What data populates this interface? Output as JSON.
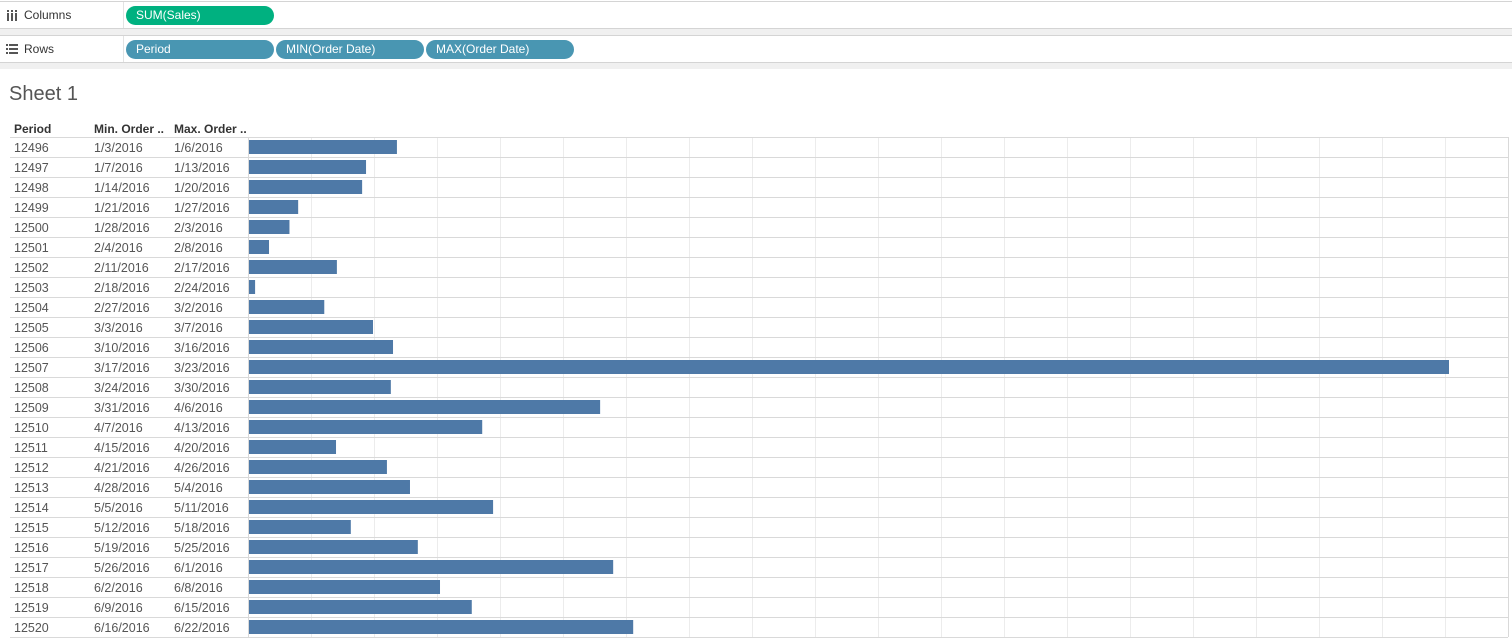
{
  "shelves": {
    "columns": {
      "label": "Columns",
      "pills": [
        {
          "text": "SUM(Sales)",
          "color": "#00b180"
        }
      ]
    },
    "rows": {
      "label": "Rows",
      "pills": [
        {
          "text": "Period",
          "color": "#4996b2"
        },
        {
          "text": "MIN(Order Date)",
          "color": "#4996b2"
        },
        {
          "text": "MAX(Order Date)",
          "color": "#4996b2"
        }
      ]
    }
  },
  "sheet_title": "Sheet 1",
  "headers": {
    "period": "Period",
    "min_date": "Min. Order ..",
    "max_date": "Max. Order .."
  },
  "colors": {
    "bar": "#4e79a7",
    "grid": "#ececec",
    "row_divider": "#d9d9d9"
  },
  "chart_data": {
    "type": "bar",
    "orientation": "horizontal",
    "measure": "SUM(Sales)",
    "xlim": [
      0,
      13800
    ],
    "grid": true,
    "rows": [
      {
        "period": "12496",
        "min_date": "1/3/2016",
        "max_date": "1/6/2016",
        "value": 1700
      },
      {
        "period": "12497",
        "min_date": "1/7/2016",
        "max_date": "1/13/2016",
        "value": 1345
      },
      {
        "period": "12498",
        "min_date": "1/14/2016",
        "max_date": "1/20/2016",
        "value": 1300
      },
      {
        "period": "12499",
        "min_date": "1/21/2016",
        "max_date": "1/27/2016",
        "value": 565
      },
      {
        "period": "12500",
        "min_date": "1/28/2016",
        "max_date": "2/3/2016",
        "value": 465
      },
      {
        "period": "12501",
        "min_date": "2/4/2016",
        "max_date": "2/8/2016",
        "value": 230
      },
      {
        "period": "12502",
        "min_date": "2/11/2016",
        "max_date": "2/17/2016",
        "value": 1010
      },
      {
        "period": "12503",
        "min_date": "2/18/2016",
        "max_date": "2/24/2016",
        "value": 70
      },
      {
        "period": "12504",
        "min_date": "2/27/2016",
        "max_date": "3/2/2016",
        "value": 865
      },
      {
        "period": "12505",
        "min_date": "3/3/2016",
        "max_date": "3/7/2016",
        "value": 1425
      },
      {
        "period": "12506",
        "min_date": "3/10/2016",
        "max_date": "3/16/2016",
        "value": 1655
      },
      {
        "period": "12507",
        "min_date": "3/17/2016",
        "max_date": "3/23/2016",
        "value": 13790
      },
      {
        "period": "12508",
        "min_date": "3/24/2016",
        "max_date": "3/30/2016",
        "value": 1630
      },
      {
        "period": "12509",
        "min_date": "3/31/2016",
        "max_date": "4/6/2016",
        "value": 4035
      },
      {
        "period": "12510",
        "min_date": "4/7/2016",
        "max_date": "4/13/2016",
        "value": 2680
      },
      {
        "period": "12511",
        "min_date": "4/15/2016",
        "max_date": "4/20/2016",
        "value": 1000
      },
      {
        "period": "12512",
        "min_date": "4/21/2016",
        "max_date": "4/26/2016",
        "value": 1585
      },
      {
        "period": "12513",
        "min_date": "4/28/2016",
        "max_date": "5/4/2016",
        "value": 1850
      },
      {
        "period": "12514",
        "min_date": "5/5/2016",
        "max_date": "5/11/2016",
        "value": 2805
      },
      {
        "period": "12515",
        "min_date": "5/12/2016",
        "max_date": "5/18/2016",
        "value": 1170
      },
      {
        "period": "12516",
        "min_date": "5/19/2016",
        "max_date": "5/25/2016",
        "value": 1940
      },
      {
        "period": "12517",
        "min_date": "5/26/2016",
        "max_date": "6/1/2016",
        "value": 4185
      },
      {
        "period": "12518",
        "min_date": "6/2/2016",
        "max_date": "6/8/2016",
        "value": 2195
      },
      {
        "period": "12519",
        "min_date": "6/9/2016",
        "max_date": "6/15/2016",
        "value": 2560
      },
      {
        "period": "12520",
        "min_date": "6/16/2016",
        "max_date": "6/22/2016",
        "value": 4415
      }
    ]
  }
}
